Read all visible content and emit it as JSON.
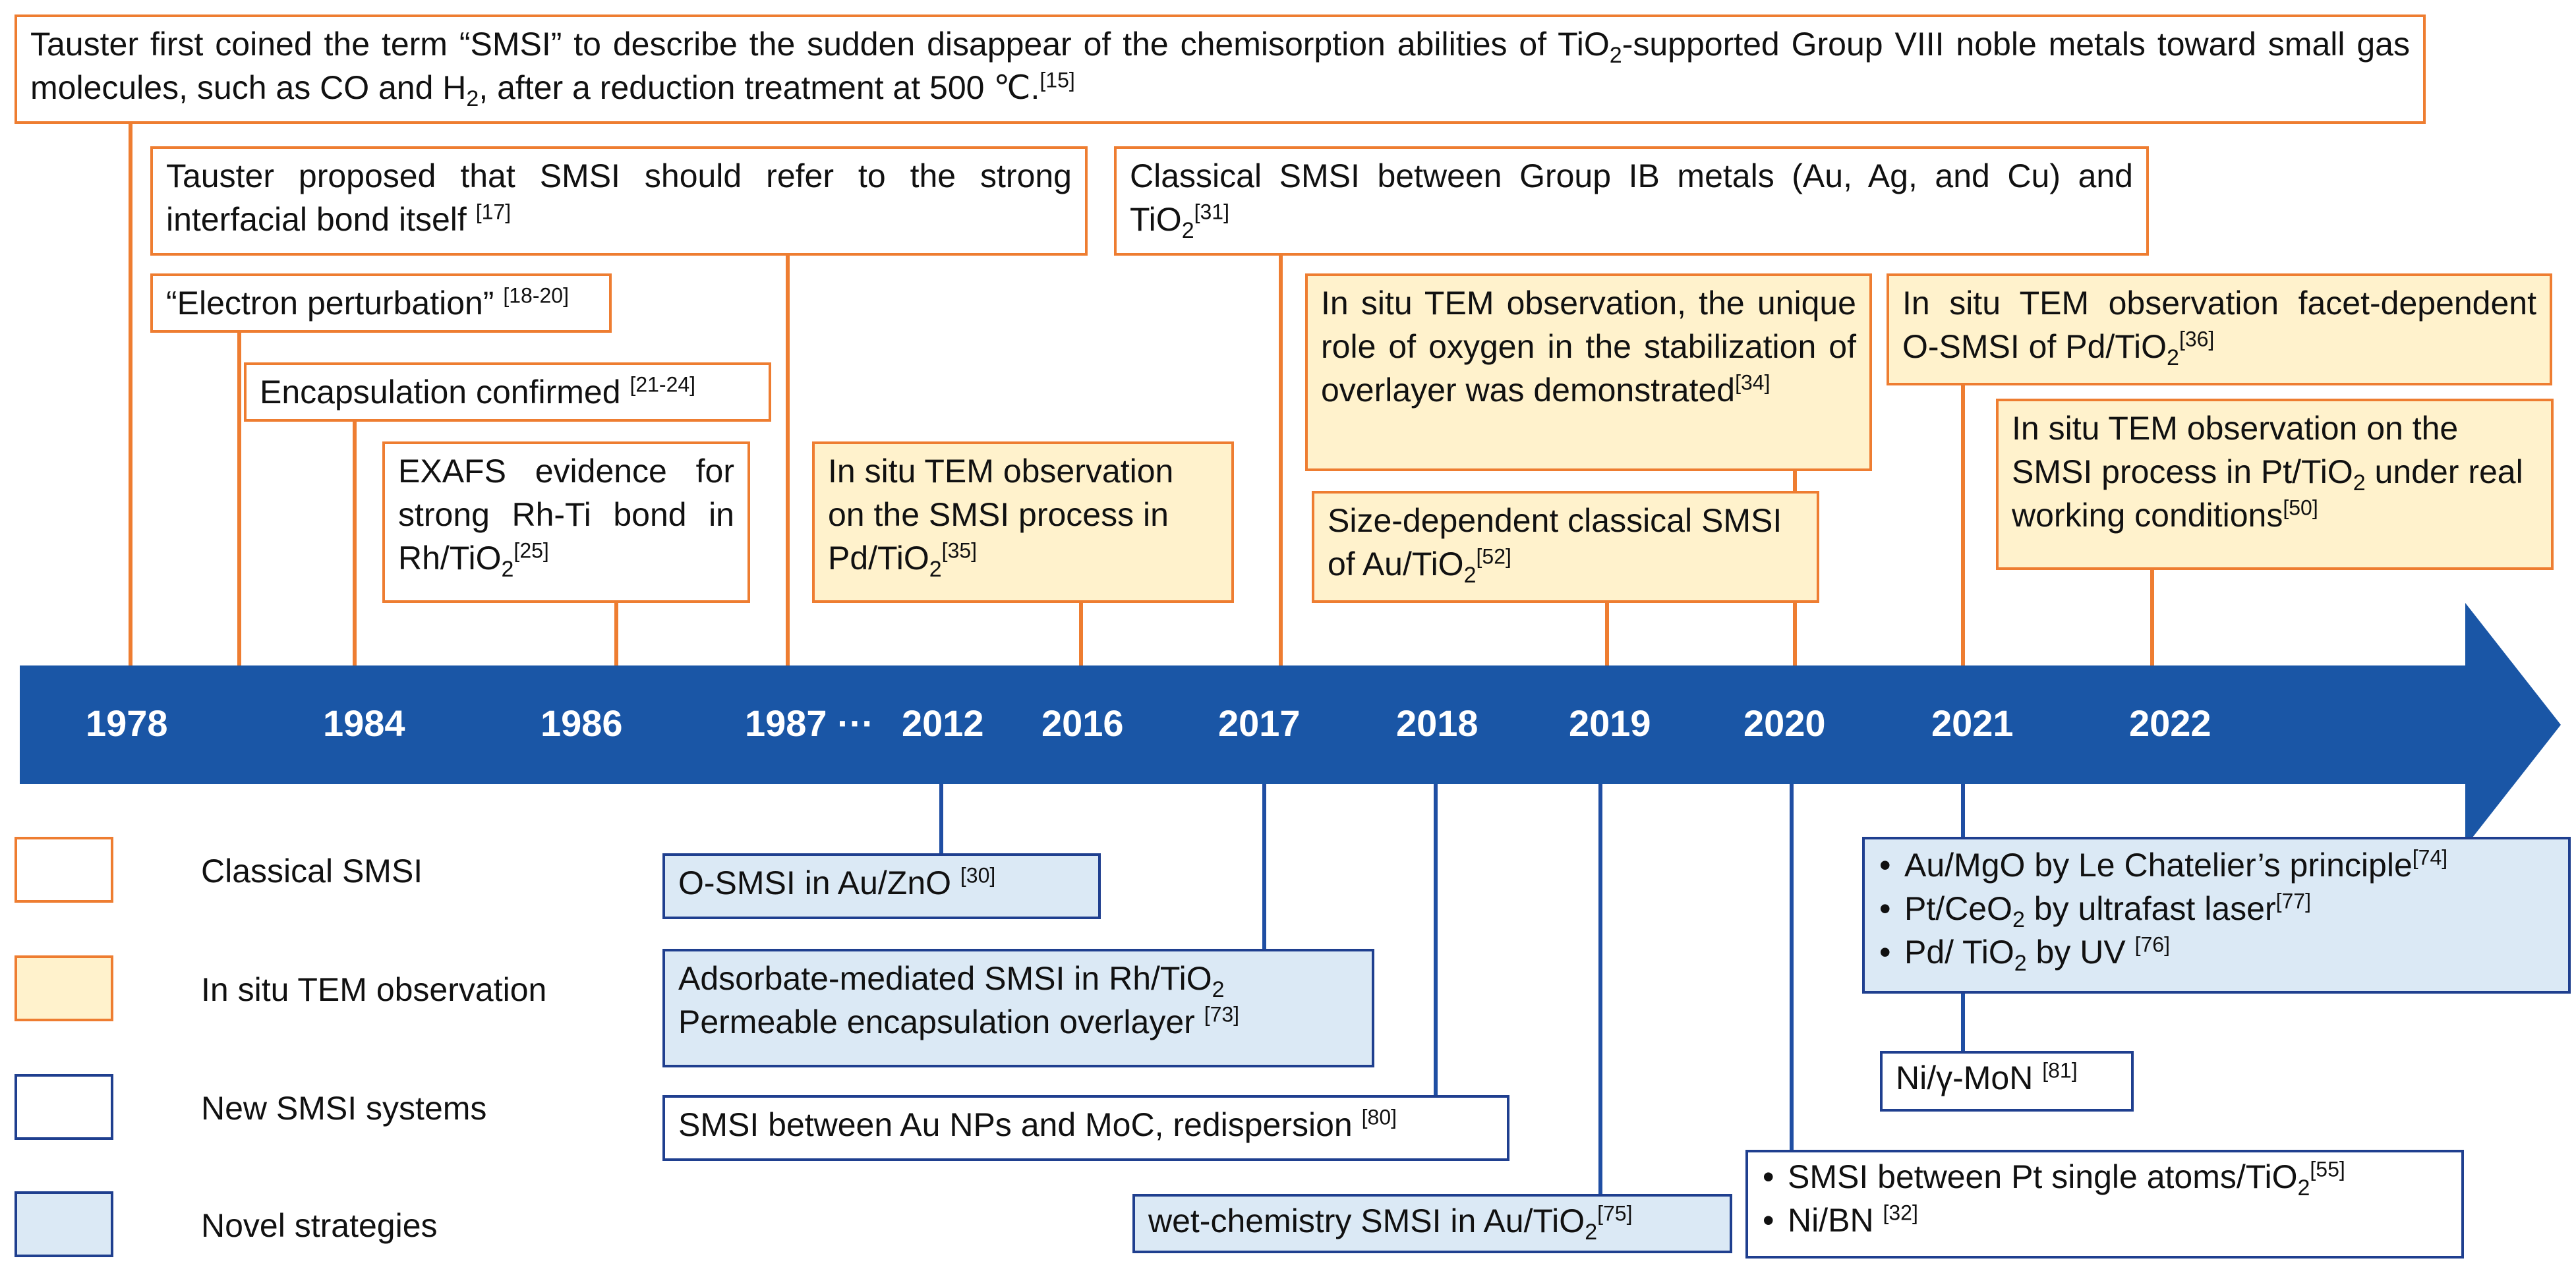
{
  "timeline": {
    "years": [
      "1978",
      "1984",
      "1986",
      "1987 ···",
      "2012",
      "2016",
      "2017",
      "2018",
      "2019",
      "2020",
      "2021",
      "2022"
    ]
  },
  "events_above": {
    "e1978": {
      "text": "Tauster first coined the term “SMSI” to describe the sudden disappear of the chemisorption abilities of ",
      "tio2_sub": "2",
      "text_b": "-supported Group VIII noble metals toward small gas molecules, such as CO and H",
      "h2_sub": "2",
      "text_c": ", after a reduction treatment at 500 ℃.",
      "ref": "[15]"
    },
    "e1987": {
      "text": "Tauster proposed that SMSI should refer to the strong interfacial bond itself ",
      "ref": "[17]"
    },
    "electron": {
      "text": "“Electron perturbation” ",
      "ref": "[18-20]"
    },
    "encap": {
      "text": "Encapsulation confirmed ",
      "ref": "[21-24]"
    },
    "exafs": {
      "text": "EXAFS evidence for strong Rh-Ti bond in Rh/TiO",
      "sub": "2",
      "ref": "[25]"
    },
    "e2016": {
      "text": "In situ TEM observation on the SMSI process in Pd/TiO",
      "sub": "2",
      "ref": "[35]"
    },
    "e2017": {
      "text": "Classical SMSI between Group IB metals (Au, Ag, and Cu) and TiO",
      "sub": "2",
      "ref": "[31]"
    },
    "e2020": {
      "text": "In situ TEM observation, the unique role of oxygen in the stabilization of overlayer was demonstrated",
      "ref": "[34]"
    },
    "e2019": {
      "text": "Size-dependent classical SMSI of Au/TiO",
      "sub": "2",
      "ref": "[52]"
    },
    "e2021": {
      "text": "In situ TEM observation facet-dependent O-SMSI of Pd/TiO",
      "sub": "2",
      "ref": "[36]"
    },
    "e2022": {
      "text": "In situ TEM observation on the SMSI process in Pt/TiO",
      "sub": "2",
      "text_b": " under real working conditions",
      "ref": "[50]"
    }
  },
  "events_below": {
    "ozno": {
      "text": "O-SMSI in Au/ZnO ",
      "ref": "[30]"
    },
    "adsorbate": {
      "line1": "Adsorbate-mediated SMSI in Rh/TiO",
      "sub": "2",
      "line2": "Permeable encapsulation overlayer ",
      "ref": "[73]"
    },
    "moc": {
      "text": "SMSI between Au NPs and MoC, redispersion ",
      "ref": "[80]"
    },
    "wet": {
      "text": "wet-chemistry SMSI in Au/TiO",
      "sub": "2",
      "ref": "[75]"
    },
    "strategies2021": [
      {
        "text": "Au/MgO by Le Chatelier’s principle",
        "ref": "[74]"
      },
      {
        "text": "Pt/CeO",
        "sub": "2",
        "text_b": " by ultrafast laser",
        "ref": "[77]"
      },
      {
        "text": "Pd/ TiO",
        "sub": "2",
        "text_b": " by UV ",
        "ref": "[76]"
      }
    ],
    "nimon": {
      "text": "Ni/γ-MoN ",
      "ref": "[81]"
    },
    "systems2020": [
      {
        "text": "SMSI between Pt single atoms/TiO",
        "sub": "2",
        "ref": "[55]"
      },
      {
        "text": "Ni/BN ",
        "ref": "[32]"
      }
    ]
  },
  "legend": {
    "items": [
      {
        "label": "Classical SMSI"
      },
      {
        "label": "In situ TEM observation"
      },
      {
        "label": "New SMSI systems"
      },
      {
        "label": "Novel strategies"
      }
    ]
  },
  "colors": {
    "classical": "#ee7d31",
    "tem_fill": "#fff2cc",
    "new_border": "#1f3f8f",
    "novel_fill": "#dbe9f5",
    "arrow": "#1a56a6"
  }
}
